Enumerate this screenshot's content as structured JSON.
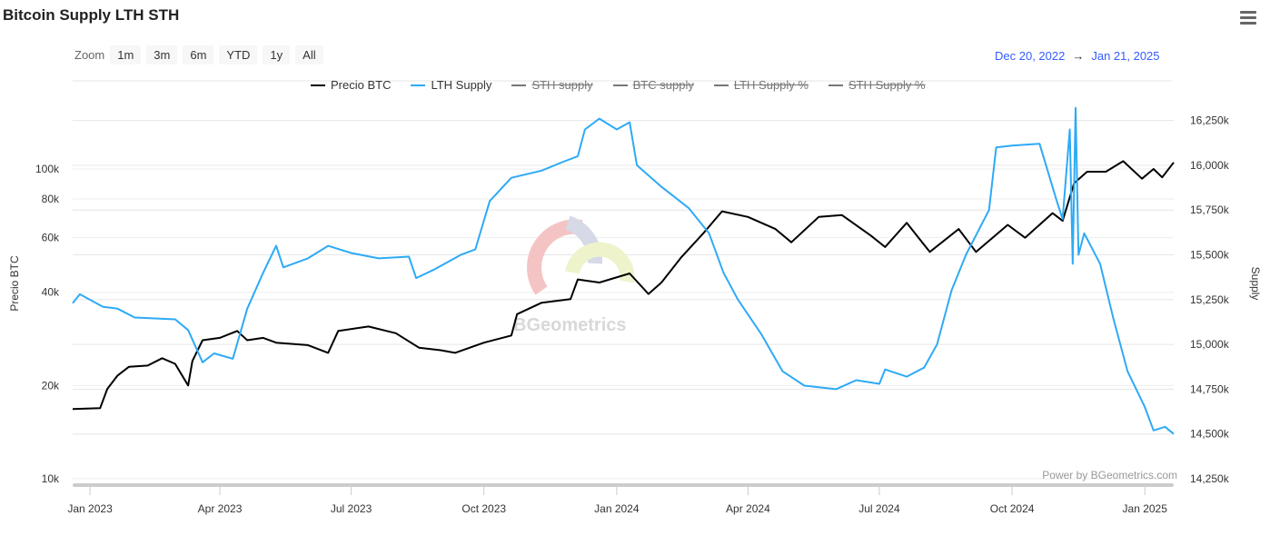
{
  "title": "Bitcoin Supply LTH STH",
  "zoom": {
    "label": "Zoom",
    "buttons": [
      "1m",
      "3m",
      "6m",
      "YTD",
      "1y",
      "All"
    ]
  },
  "range": {
    "from": "Dec 20, 2022",
    "arrow": "→",
    "to": "Jan 21, 2025"
  },
  "watermark": "BGeometrics",
  "credit": "Power by BGeometrics.com",
  "colors": {
    "btc": "#000000",
    "lth": "#2eaaf5",
    "hidden": "#777777"
  },
  "chart_data": {
    "type": "line",
    "title": "Bitcoin Supply LTH STH",
    "legend": [
      {
        "name": "Precio BTC",
        "visible": true
      },
      {
        "name": "LTH Supply",
        "visible": true
      },
      {
        "name": "STH supply",
        "visible": false
      },
      {
        "name": "BTC supply",
        "visible": false
      },
      {
        "name": "LTH Supply %",
        "visible": false
      },
      {
        "name": "STH Supply %",
        "visible": false
      }
    ],
    "legend_position": "top-center",
    "x_range": [
      "2022-12-20",
      "2025-01-21"
    ],
    "x_ticks": [
      {
        "label": "Jan 2023",
        "date": "2023-01-01"
      },
      {
        "label": "Apr 2023",
        "date": "2023-04-01"
      },
      {
        "label": "Jul 2023",
        "date": "2023-07-01"
      },
      {
        "label": "Oct 2023",
        "date": "2023-10-01"
      },
      {
        "label": "Jan 2024",
        "date": "2024-01-01"
      },
      {
        "label": "Apr 2024",
        "date": "2024-04-01"
      },
      {
        "label": "Jul 2024",
        "date": "2024-07-01"
      },
      {
        "label": "Oct 2024",
        "date": "2024-10-01"
      },
      {
        "label": "Jan 2025",
        "date": "2025-01-01"
      }
    ],
    "y_left": {
      "label": "Precio BTC",
      "scale": "log",
      "range": [
        10000,
        100000
      ],
      "ticks": [
        {
          "v": 10000,
          "label": "10k"
        },
        {
          "v": 20000,
          "label": "20k"
        },
        {
          "v": 40000,
          "label": "40k"
        },
        {
          "v": 60000,
          "label": "60k"
        },
        {
          "v": 80000,
          "label": "80k"
        },
        {
          "v": 100000,
          "label": "100k"
        }
      ]
    },
    "y_right": {
      "label": "Supply",
      "range": [
        14250,
        16250
      ],
      "unit": "k",
      "ticks": [
        {
          "v": 14250,
          "label": "14,250k"
        },
        {
          "v": 14500,
          "label": "14,500k"
        },
        {
          "v": 14750,
          "label": "14,750k"
        },
        {
          "v": 15000,
          "label": "15,000k"
        },
        {
          "v": 15250,
          "label": "15,250k"
        },
        {
          "v": 15500,
          "label": "15,500k"
        },
        {
          "v": 15750,
          "label": "15,750k"
        },
        {
          "v": 16000,
          "label": "16,000k"
        },
        {
          "v": 16250,
          "label": "16,250k"
        }
      ]
    },
    "series": [
      {
        "name": "Precio BTC",
        "axis": "left",
        "points": [
          [
            "2022-12-20",
            16800
          ],
          [
            "2023-01-08",
            16900
          ],
          [
            "2023-01-13",
            19500
          ],
          [
            "2023-01-20",
            21500
          ],
          [
            "2023-01-28",
            23000
          ],
          [
            "2023-02-10",
            23200
          ],
          [
            "2023-02-20",
            24500
          ],
          [
            "2023-03-01",
            23500
          ],
          [
            "2023-03-10",
            20000
          ],
          [
            "2023-03-13",
            24000
          ],
          [
            "2023-03-20",
            28000
          ],
          [
            "2023-04-01",
            28500
          ],
          [
            "2023-04-13",
            30000
          ],
          [
            "2023-04-20",
            28000
          ],
          [
            "2023-05-01",
            28500
          ],
          [
            "2023-05-10",
            27500
          ],
          [
            "2023-06-01",
            27000
          ],
          [
            "2023-06-15",
            25500
          ],
          [
            "2023-06-22",
            30000
          ],
          [
            "2023-07-13",
            31000
          ],
          [
            "2023-08-01",
            29500
          ],
          [
            "2023-08-17",
            26500
          ],
          [
            "2023-09-01",
            26000
          ],
          [
            "2023-09-11",
            25500
          ],
          [
            "2023-10-01",
            27500
          ],
          [
            "2023-10-20",
            29000
          ],
          [
            "2023-10-24",
            34000
          ],
          [
            "2023-11-10",
            37000
          ],
          [
            "2023-11-30",
            38000
          ],
          [
            "2023-12-05",
            44000
          ],
          [
            "2023-12-20",
            43000
          ],
          [
            "2024-01-10",
            46000
          ],
          [
            "2024-01-23",
            39500
          ],
          [
            "2024-02-01",
            43000
          ],
          [
            "2024-02-15",
            52000
          ],
          [
            "2024-03-01",
            62000
          ],
          [
            "2024-03-14",
            73000
          ],
          [
            "2024-04-01",
            70000
          ],
          [
            "2024-04-20",
            64000
          ],
          [
            "2024-05-01",
            58000
          ],
          [
            "2024-05-20",
            70000
          ],
          [
            "2024-06-05",
            71000
          ],
          [
            "2024-06-25",
            61000
          ],
          [
            "2024-07-05",
            56000
          ],
          [
            "2024-07-20",
            67000
          ],
          [
            "2024-08-05",
            54000
          ],
          [
            "2024-08-25",
            64000
          ],
          [
            "2024-09-06",
            54000
          ],
          [
            "2024-09-28",
            66000
          ],
          [
            "2024-10-10",
            60000
          ],
          [
            "2024-10-29",
            72000
          ],
          [
            "2024-11-05",
            68000
          ],
          [
            "2024-11-13",
            90000
          ],
          [
            "2024-11-22",
            98000
          ],
          [
            "2024-12-05",
            98000
          ],
          [
            "2024-12-17",
            106000
          ],
          [
            "2024-12-30",
            93000
          ],
          [
            "2025-01-07",
            100000
          ],
          [
            "2025-01-13",
            94000
          ],
          [
            "2025-01-21",
            105000
          ]
        ]
      },
      {
        "name": "LTH Supply",
        "axis": "right",
        "points": [
          [
            "2022-12-20",
            15230
          ],
          [
            "2022-12-25",
            15280
          ],
          [
            "2023-01-10",
            15210
          ],
          [
            "2023-01-20",
            15200
          ],
          [
            "2023-02-01",
            15150
          ],
          [
            "2023-03-01",
            15140
          ],
          [
            "2023-03-10",
            15080
          ],
          [
            "2023-03-20",
            14900
          ],
          [
            "2023-03-28",
            14950
          ],
          [
            "2023-04-10",
            14920
          ],
          [
            "2023-04-20",
            15200
          ],
          [
            "2023-05-01",
            15400
          ],
          [
            "2023-05-10",
            15550
          ],
          [
            "2023-05-15",
            15430
          ],
          [
            "2023-06-01",
            15480
          ],
          [
            "2023-06-15",
            15550
          ],
          [
            "2023-07-01",
            15510
          ],
          [
            "2023-07-20",
            15480
          ],
          [
            "2023-08-10",
            15490
          ],
          [
            "2023-08-15",
            15370
          ],
          [
            "2023-08-28",
            15420
          ],
          [
            "2023-09-15",
            15500
          ],
          [
            "2023-09-25",
            15530
          ],
          [
            "2023-10-05",
            15800
          ],
          [
            "2023-10-20",
            15930
          ],
          [
            "2023-11-10",
            15970
          ],
          [
            "2023-11-25",
            16020
          ],
          [
            "2023-12-05",
            16050
          ],
          [
            "2023-12-10",
            16200
          ],
          [
            "2023-12-20",
            16260
          ],
          [
            "2024-01-01",
            16200
          ],
          [
            "2024-01-10",
            16240
          ],
          [
            "2024-01-15",
            16000
          ],
          [
            "2024-02-01",
            15880
          ],
          [
            "2024-02-20",
            15760
          ],
          [
            "2024-03-05",
            15620
          ],
          [
            "2024-03-15",
            15400
          ],
          [
            "2024-03-25",
            15250
          ],
          [
            "2024-04-10",
            15060
          ],
          [
            "2024-04-25",
            14850
          ],
          [
            "2024-05-10",
            14770
          ],
          [
            "2024-06-01",
            14750
          ],
          [
            "2024-06-15",
            14800
          ],
          [
            "2024-07-01",
            14780
          ],
          [
            "2024-07-05",
            14860
          ],
          [
            "2024-07-20",
            14820
          ],
          [
            "2024-08-01",
            14870
          ],
          [
            "2024-08-10",
            15000
          ],
          [
            "2024-08-20",
            15300
          ],
          [
            "2024-08-30",
            15500
          ],
          [
            "2024-09-15",
            15750
          ],
          [
            "2024-09-20",
            16100
          ],
          [
            "2024-10-01",
            16110
          ],
          [
            "2024-10-20",
            16120
          ],
          [
            "2024-11-01",
            15800
          ],
          [
            "2024-11-05",
            15700
          ],
          [
            "2024-11-10",
            16200
          ],
          [
            "2024-11-12",
            15450
          ],
          [
            "2024-11-14",
            16320
          ],
          [
            "2024-11-16",
            15500
          ],
          [
            "2024-11-20",
            15620
          ],
          [
            "2024-12-01",
            15450
          ],
          [
            "2024-12-10",
            15150
          ],
          [
            "2024-12-20",
            14850
          ],
          [
            "2025-01-01",
            14650
          ],
          [
            "2025-01-07",
            14520
          ],
          [
            "2025-01-15",
            14540
          ],
          [
            "2025-01-21",
            14500
          ]
        ]
      }
    ]
  }
}
